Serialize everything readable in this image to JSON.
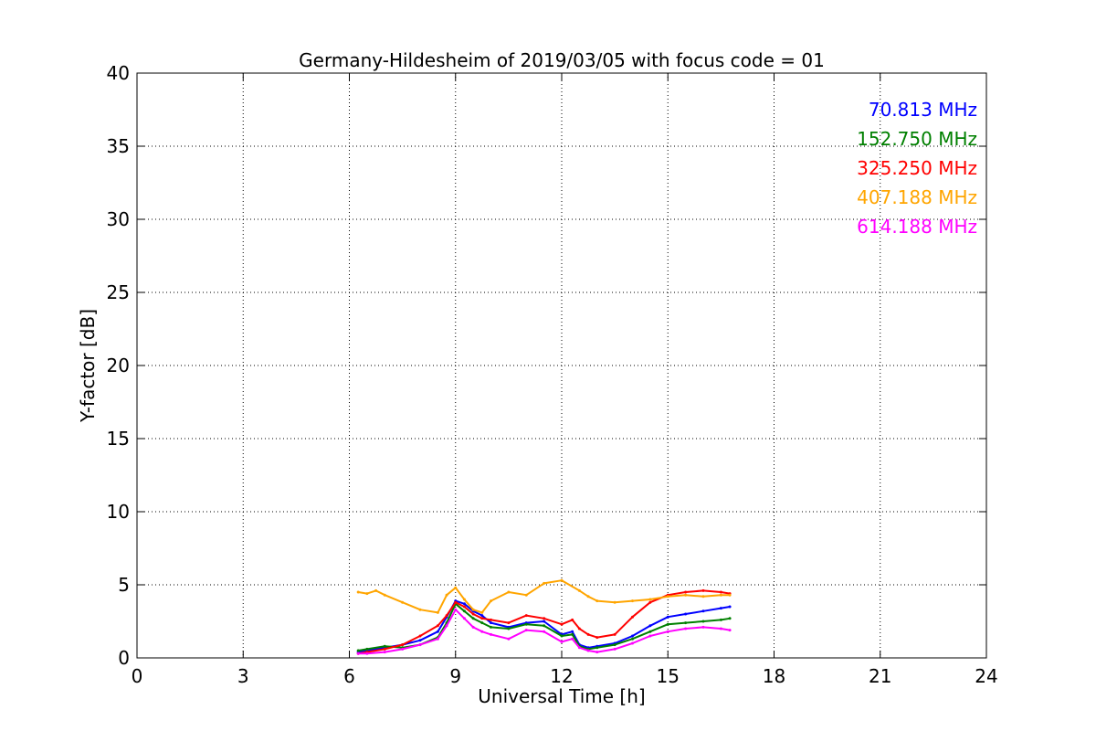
{
  "chart_data": {
    "type": "line",
    "title": "Germany-Hildesheim of 2019/03/05 with focus code = 01",
    "xlabel": "Universal Time [h]",
    "ylabel": "Y-factor [dB]",
    "xlim": [
      0,
      24
    ],
    "ylim": [
      0,
      40
    ],
    "xticks": [
      0,
      3,
      6,
      9,
      12,
      15,
      18,
      21,
      24
    ],
    "yticks": [
      0,
      5,
      10,
      15,
      20,
      25,
      30,
      35,
      40
    ],
    "grid": true,
    "legend_position": "top-right",
    "series": [
      {
        "name": "70.813 MHz",
        "color": "#0000ff",
        "x": [
          6.25,
          6.5,
          7.0,
          7.5,
          8.0,
          8.5,
          8.75,
          9.0,
          9.25,
          9.5,
          9.75,
          10.0,
          10.5,
          11.0,
          11.5,
          12.0,
          12.3,
          12.5,
          12.75,
          13.0,
          13.5,
          14.0,
          14.5,
          15.0,
          15.5,
          16.0,
          16.5,
          16.75
        ],
        "y": [
          0.4,
          0.5,
          0.7,
          0.9,
          1.2,
          1.8,
          2.8,
          3.9,
          3.7,
          3.2,
          2.9,
          2.4,
          2.1,
          2.4,
          2.5,
          1.6,
          1.8,
          0.9,
          0.7,
          0.8,
          1.0,
          1.5,
          2.2,
          2.8,
          3.0,
          3.2,
          3.4,
          3.5
        ]
      },
      {
        "name": "152.750 MHz",
        "color": "#008000",
        "x": [
          6.25,
          6.5,
          7.0,
          7.5,
          8.0,
          8.5,
          8.75,
          9.0,
          9.25,
          9.5,
          9.75,
          10.0,
          10.5,
          11.0,
          11.5,
          12.0,
          12.3,
          12.5,
          12.75,
          13.0,
          13.5,
          14.0,
          14.5,
          15.0,
          15.5,
          16.0,
          16.5,
          16.75
        ],
        "y": [
          0.5,
          0.6,
          0.8,
          0.7,
          0.9,
          1.4,
          2.4,
          3.7,
          3.2,
          2.7,
          2.4,
          2.1,
          2.0,
          2.3,
          2.2,
          1.5,
          1.6,
          0.8,
          0.6,
          0.7,
          0.9,
          1.3,
          1.8,
          2.3,
          2.4,
          2.5,
          2.6,
          2.7
        ]
      },
      {
        "name": "325.250 MHz",
        "color": "#ff0000",
        "x": [
          6.25,
          6.5,
          7.0,
          7.5,
          8.0,
          8.5,
          8.75,
          9.0,
          9.25,
          9.5,
          9.75,
          10.0,
          10.5,
          11.0,
          11.5,
          12.0,
          12.3,
          12.5,
          12.75,
          13.0,
          13.5,
          14.0,
          14.5,
          15.0,
          15.5,
          16.0,
          16.5,
          16.75
        ],
        "y": [
          0.3,
          0.4,
          0.6,
          0.9,
          1.5,
          2.2,
          2.9,
          3.8,
          3.5,
          3.0,
          2.7,
          2.6,
          2.4,
          2.9,
          2.7,
          2.3,
          2.6,
          2.0,
          1.6,
          1.4,
          1.6,
          2.8,
          3.8,
          4.3,
          4.5,
          4.6,
          4.5,
          4.4
        ]
      },
      {
        "name": "407.188 MHz",
        "color": "#ffa500",
        "x": [
          6.25,
          6.5,
          6.75,
          7.0,
          7.5,
          8.0,
          8.5,
          8.75,
          9.0,
          9.25,
          9.5,
          9.75,
          10.0,
          10.5,
          11.0,
          11.5,
          12.0,
          12.5,
          12.75,
          13.0,
          13.5,
          14.0,
          14.5,
          15.0,
          15.5,
          16.0,
          16.5,
          16.75
        ],
        "y": [
          4.5,
          4.4,
          4.6,
          4.3,
          3.8,
          3.3,
          3.1,
          4.3,
          4.8,
          4.0,
          3.3,
          3.1,
          3.9,
          4.5,
          4.3,
          5.1,
          5.3,
          4.6,
          4.2,
          3.9,
          3.8,
          3.9,
          4.0,
          4.2,
          4.3,
          4.2,
          4.3,
          4.3
        ]
      },
      {
        "name": "614.188 MHz",
        "color": "#ff00ff",
        "x": [
          6.25,
          6.5,
          7.0,
          7.5,
          8.0,
          8.5,
          8.75,
          9.0,
          9.25,
          9.5,
          9.75,
          10.0,
          10.5,
          11.0,
          11.5,
          12.0,
          12.3,
          12.5,
          12.75,
          13.0,
          13.5,
          14.0,
          14.5,
          15.0,
          15.5,
          16.0,
          16.5,
          16.75
        ],
        "y": [
          0.3,
          0.3,
          0.4,
          0.6,
          0.9,
          1.3,
          2.2,
          3.3,
          2.7,
          2.1,
          1.8,
          1.6,
          1.3,
          1.9,
          1.8,
          1.1,
          1.3,
          0.7,
          0.5,
          0.4,
          0.6,
          1.0,
          1.5,
          1.8,
          2.0,
          2.1,
          2.0,
          1.9
        ]
      }
    ]
  }
}
